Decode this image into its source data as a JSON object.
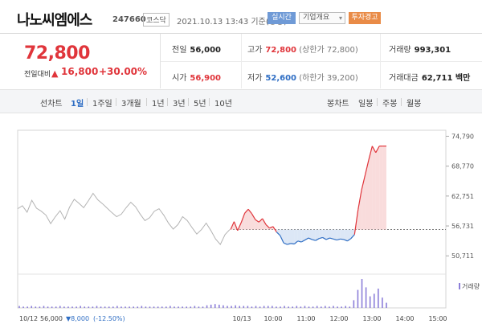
{
  "header": {
    "name": "나노씨엠에스",
    "code": "247660",
    "market": "코스닥",
    "date": "2021.10.13 13:43  기준(장중)",
    "realtime": "실시간",
    "info": "기업개요",
    "warning": "투자경고"
  },
  "price": {
    "current": "72,800",
    "change_label": "전일대비",
    "change": "16,800",
    "change_pct": "+30.00%"
  },
  "stats": {
    "prev_label": "전일",
    "prev": "56,000",
    "high_label": "고가",
    "high": "72,800",
    "upper_limit": "(상한가 72,800)",
    "volume_label": "거래량",
    "volume": "993,301",
    "open_label": "시가",
    "open": "56,900",
    "low_label": "저가",
    "low": "52,600",
    "lower_limit": "(하한가 39,200)",
    "amount_label": "거래대금",
    "amount": "62,711 백만"
  },
  "periods": {
    "line_label": "선차트",
    "d1": "1일",
    "w1": "1주일",
    "m3": "3개월",
    "y1": "1년",
    "y3": "3년",
    "y5": "5년",
    "y10": "10년",
    "candle_label": "봉차트",
    "daily": "일봉",
    "weekly": "주봉",
    "monthly": "월봉"
  },
  "chart_data": {
    "type": "line",
    "ylim": [
      48000,
      76000
    ],
    "y_ticks": [
      "74,790",
      "68,770",
      "62,751",
      "56,731",
      "50,711"
    ],
    "y_tick_values": [
      74790,
      68770,
      62751,
      56731,
      50711
    ],
    "reference_price": 56000,
    "x_ticks": [
      "10/13",
      "10:00",
      "11:00",
      "12:00",
      "13:00",
      "14:00",
      "15:00"
    ],
    "volume_label": "거래량",
    "prev_day_label": "10/12",
    "prev_day_close": "56,000",
    "prev_day_change": "▼8,000",
    "prev_day_pct": "(-12.50%)",
    "series": [
      {
        "name": "10/12",
        "values": [
          60200,
          60800,
          59500,
          61900,
          60300,
          59700,
          58900,
          57200,
          58600,
          59800,
          58100,
          60500,
          62100,
          61300,
          60400,
          61800,
          63300,
          62000,
          61200,
          60300,
          59400,
          58600,
          59100,
          60400,
          61500,
          60600,
          59100,
          57800,
          58400,
          59700,
          60200,
          58900,
          57300,
          56100,
          57000,
          58600,
          57800,
          56400,
          55100,
          56000,
          57300,
          55800,
          54100,
          53000,
          55000,
          56000
        ]
      },
      {
        "name": "10/13",
        "values": [
          56000,
          57600,
          55800,
          57400,
          59300,
          60100,
          59200,
          58000,
          57500,
          58200,
          57000,
          56300,
          56600,
          55500,
          54800,
          53300,
          53000,
          53200,
          53100,
          53700,
          53500,
          53900,
          54300,
          54000,
          53800,
          54200,
          54400,
          54000,
          54300,
          54100,
          53900,
          54100,
          54000,
          53700,
          54200,
          55000,
          60000,
          64000,
          67000,
          70000,
          72800,
          71500,
          72800,
          72800,
          72800
        ]
      }
    ],
    "volume": [
      3,
      2,
      2,
      3,
      2,
      2,
      3,
      2,
      2,
      2,
      3,
      2,
      2,
      2,
      2,
      3,
      2,
      2,
      2,
      3,
      2,
      2,
      2,
      2,
      3,
      2,
      2,
      2,
      2,
      2,
      3,
      2,
      2,
      2,
      2,
      2,
      2,
      3,
      2,
      2,
      2,
      2,
      2,
      3,
      2,
      2,
      4,
      5,
      6,
      5,
      4,
      3,
      3,
      4,
      3,
      3,
      3,
      2,
      3,
      2,
      3,
      3,
      3,
      2,
      2,
      3,
      2,
      2,
      3,
      2,
      3,
      2,
      2,
      3,
      2,
      3,
      2,
      3,
      2,
      2,
      3,
      2,
      12,
      28,
      45,
      32,
      18,
      22,
      30,
      16,
      8
    ]
  }
}
